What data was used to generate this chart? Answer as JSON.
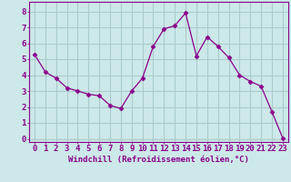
{
  "x": [
    0,
    1,
    2,
    3,
    4,
    5,
    6,
    7,
    8,
    9,
    10,
    11,
    12,
    13,
    14,
    15,
    16,
    17,
    18,
    19,
    20,
    21,
    22,
    23
  ],
  "y": [
    5.3,
    4.2,
    3.8,
    3.2,
    3.0,
    2.8,
    2.7,
    2.1,
    1.9,
    3.0,
    3.8,
    5.8,
    6.9,
    7.1,
    7.9,
    5.2,
    6.4,
    5.8,
    5.1,
    4.0,
    3.6,
    3.3,
    1.7,
    0.05
  ],
  "line_color": "#8b008b",
  "marker": "D",
  "marker_size": 2.5,
  "bg_color": "#cce8e8",
  "grid_color": "#aacccc",
  "xlabel": "Windchill (Refroidissement éolien,°C)",
  "ylabel_ticks": [
    0,
    1,
    2,
    3,
    4,
    5,
    6,
    7,
    8
  ],
  "ylim": [
    -0.2,
    8.6
  ],
  "xlim": [
    -0.5,
    23.5
  ],
  "xlabel_fontsize": 6.5,
  "tick_fontsize": 6.5,
  "tick_color": "#8b008b",
  "spine_color": "#8b008b",
  "axis_bg": "#cce8e8"
}
